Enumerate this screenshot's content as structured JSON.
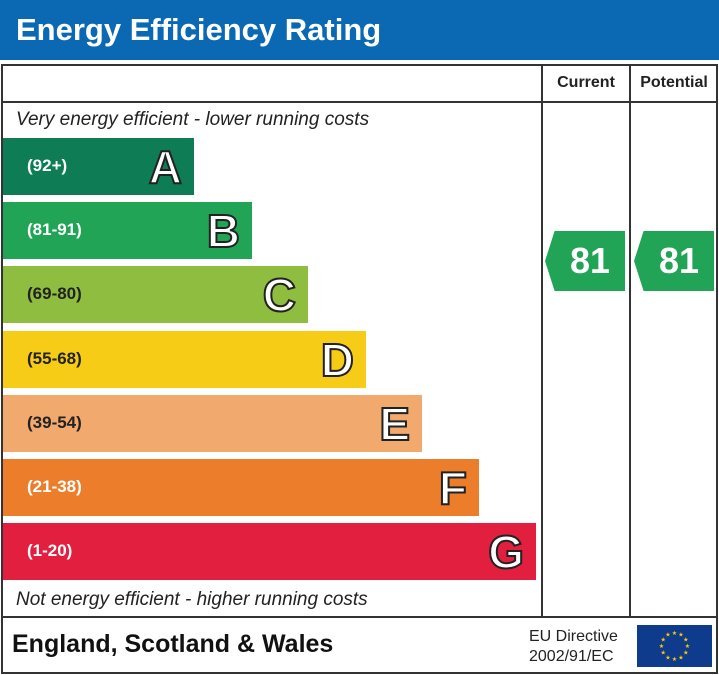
{
  "title": "Energy Efficiency Rating",
  "chart_data": {
    "type": "bar",
    "title": "Energy Efficiency Rating",
    "columns": [
      "Current",
      "Potential"
    ],
    "top_note": "Very energy efficient - lower running costs",
    "bottom_note": "Not energy efficient - higher running costs",
    "bands": [
      {
        "letter": "A",
        "range": "(92+)",
        "color": "#0e7d55"
      },
      {
        "letter": "B",
        "range": "(81-91)",
        "color": "#22a456"
      },
      {
        "letter": "C",
        "range": "(69-80)",
        "color": "#8fbd40"
      },
      {
        "letter": "D",
        "range": "(55-68)",
        "color": "#f6cc16"
      },
      {
        "letter": "E",
        "range": "(39-54)",
        "color": "#f2a96e"
      },
      {
        "letter": "F",
        "range": "(21-38)",
        "color": "#ec7d2a"
      },
      {
        "letter": "G",
        "range": "(1-20)",
        "color": "#e21f3e"
      }
    ],
    "current": {
      "value": "81",
      "band": "B",
      "color": "#22a456"
    },
    "potential": {
      "value": "81",
      "band": "B",
      "color": "#22a456"
    }
  },
  "footer": {
    "region": "England, Scotland & Wales",
    "directive_line1": "EU Directive",
    "directive_line2": "2002/91/EC"
  }
}
